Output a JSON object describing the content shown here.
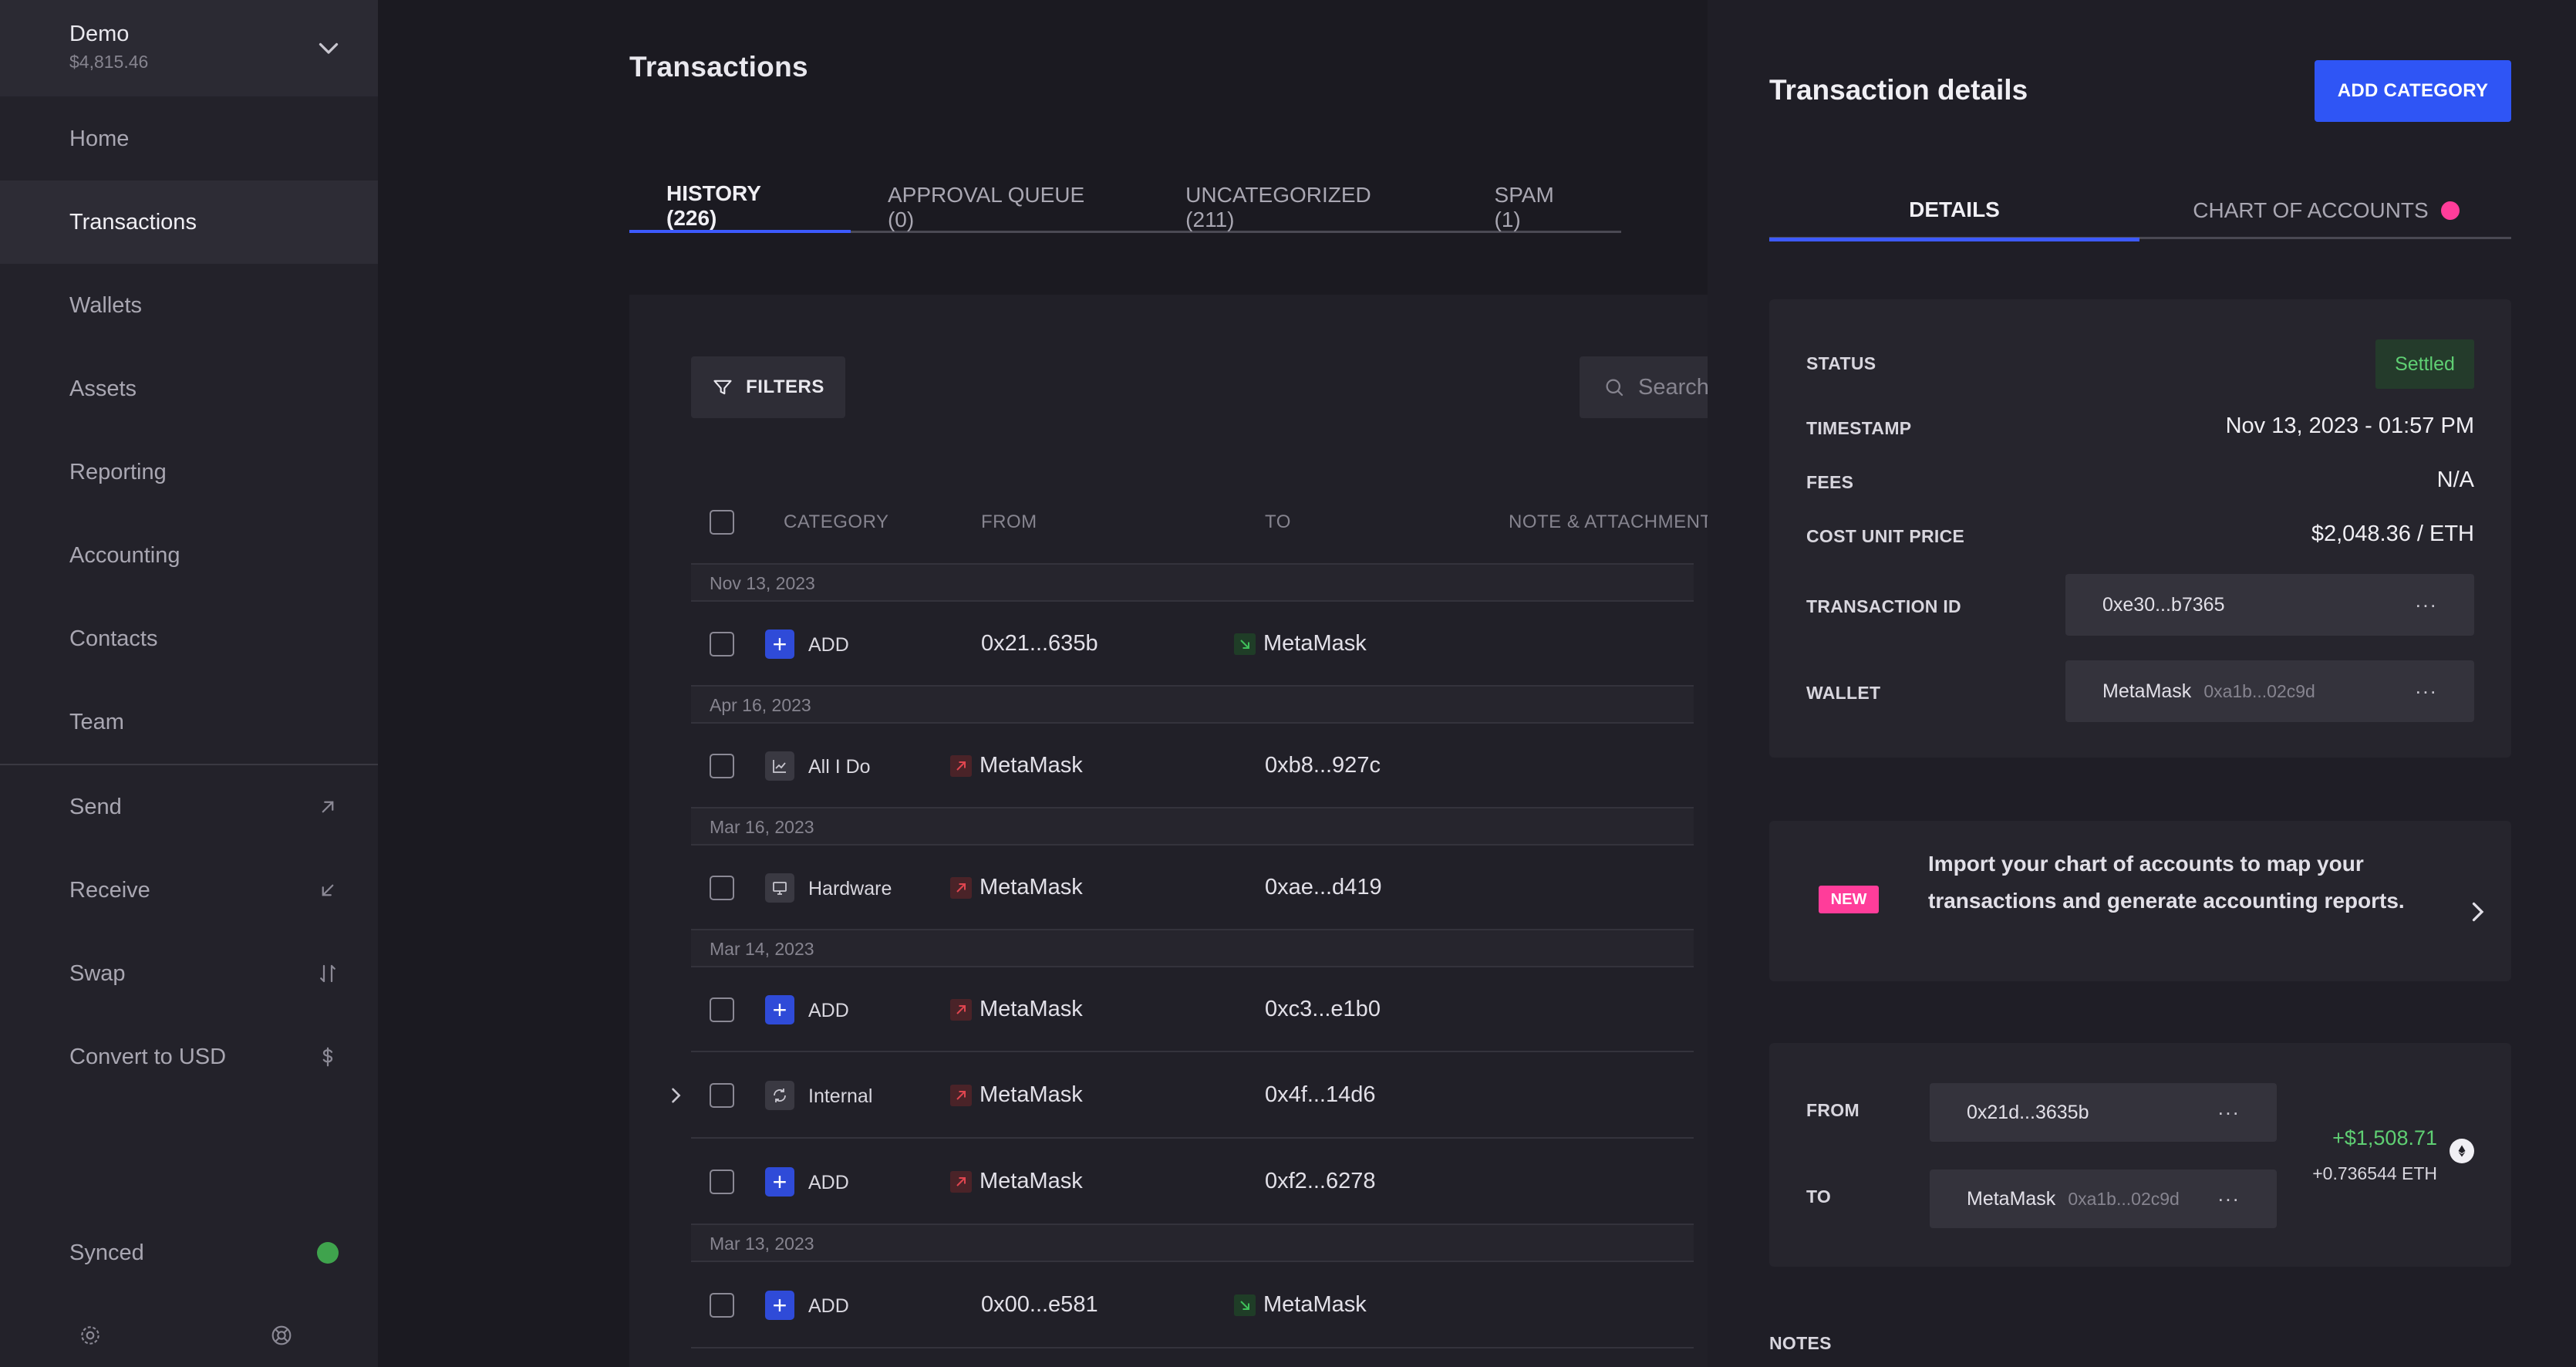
{
  "account": {
    "name": "Demo",
    "balance": "$4,815.46"
  },
  "nav": {
    "primary": [
      "Home",
      "Transactions",
      "Wallets",
      "Assets",
      "Reporting",
      "Accounting",
      "Contacts",
      "Team"
    ],
    "actions": [
      {
        "label": "Send",
        "icon": "arrow-up-right-icon"
      },
      {
        "label": "Receive",
        "icon": "arrow-down-left-icon"
      },
      {
        "label": "Swap",
        "icon": "swap-icon"
      },
      {
        "label": "Convert to USD",
        "icon": "dollar-icon"
      }
    ],
    "synced": "Synced"
  },
  "main": {
    "title": "Transactions",
    "tabs": [
      "HISTORY (226)",
      "APPROVAL QUEUE (0)",
      "UNCATEGORIZED (211)",
      "SPAM (1)"
    ],
    "filters_label": "FILTERS",
    "search_placeholder": "Search",
    "columns": [
      "CATEGORY",
      "FROM",
      "TO",
      "NOTE & ATTACHMENT"
    ],
    "dates": [
      "Nov 13, 2023",
      "Apr 16, 2023",
      "Mar 16, 2023",
      "Mar 14, 2023",
      "Mar 13, 2023"
    ],
    "rows": [
      {
        "category": "ADD",
        "from": "0x21...635b",
        "to": "MetaMask"
      },
      {
        "category": "All I Do",
        "from": "MetaMask",
        "to": "0xb8...927c"
      },
      {
        "category": "Hardware",
        "from": "MetaMask",
        "to": "0xae...d419"
      },
      {
        "category": "ADD",
        "from": "MetaMask",
        "to": "0xc3...e1b0"
      },
      {
        "category": "Internal",
        "from": "MetaMask",
        "to": "0x4f...14d6"
      },
      {
        "category": "ADD",
        "from": "MetaMask",
        "to": "0xf2...6278"
      },
      {
        "category": "ADD",
        "from": "0x00...e581",
        "to": "MetaMask"
      }
    ]
  },
  "drawer": {
    "title": "Transaction details",
    "add_category": "ADD CATEGORY",
    "tabs": [
      "DETAILS",
      "CHART OF ACCOUNTS"
    ],
    "status_label": "STATUS",
    "status_value": "Settled",
    "timestamp_label": "TIMESTAMP",
    "timestamp_value": "Nov 13, 2023 - 01:57 PM",
    "fees_label": "FEES",
    "fees_value": "N/A",
    "cost_label": "COST UNIT PRICE",
    "cost_value": "$2,048.36 / ETH",
    "txid_label": "TRANSACTION ID",
    "txid_value": "0xe30...b7365",
    "wallet_label": "WALLET",
    "wallet_name": "MetaMask",
    "wallet_addr": "0xa1b...02c9d",
    "promo_badge": "NEW",
    "promo_text": "Import your chart of accounts to map your transactions and generate accounting reports.",
    "from_label": "FROM",
    "from_value": "0x21d...3635b",
    "to_label": "TO",
    "to_name": "MetaMask",
    "to_addr": "0xa1b...02c9d",
    "amount_usd": "+$1,508.71",
    "amount_eth": "+0.736544 ETH",
    "notes_label": "NOTES"
  },
  "colors": {
    "accent": "#2f55f5",
    "positive": "#5fcf73",
    "pink": "#ff3d9a",
    "synced": "#3fa34d"
  }
}
